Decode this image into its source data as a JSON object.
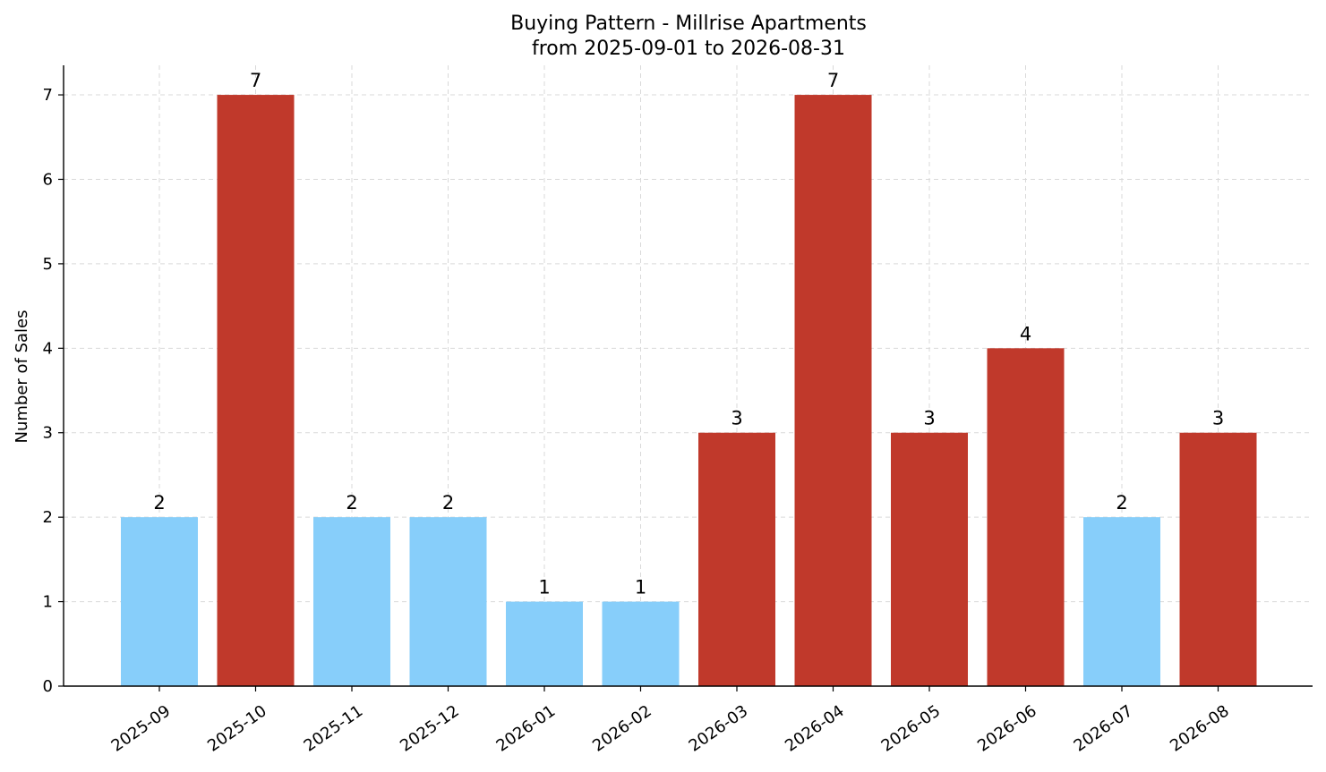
{
  "chart_data": {
    "type": "bar",
    "title": "Buying Pattern - Millrise Apartments",
    "subtitle": "from 2025-09-01 to 2026-08-31",
    "xlabel": "",
    "ylabel": "Number of Sales",
    "categories": [
      "2025-09",
      "2025-10",
      "2025-11",
      "2025-12",
      "2026-01",
      "2026-02",
      "2026-03",
      "2026-04",
      "2026-05",
      "2026-06",
      "2026-07",
      "2026-08"
    ],
    "values": [
      2,
      7,
      2,
      2,
      1,
      1,
      3,
      7,
      3,
      4,
      2,
      3
    ],
    "bar_colors": [
      "#87CEFA",
      "#C0392B",
      "#87CEFA",
      "#87CEFA",
      "#87CEFA",
      "#87CEFA",
      "#C0392B",
      "#C0392B",
      "#C0392B",
      "#C0392B",
      "#87CEFA",
      "#C0392B"
    ],
    "ylim": [
      0,
      7.35
    ],
    "yticks": [
      0,
      1,
      2,
      3,
      4,
      5,
      6,
      7
    ],
    "grid": true,
    "legend": "none"
  }
}
